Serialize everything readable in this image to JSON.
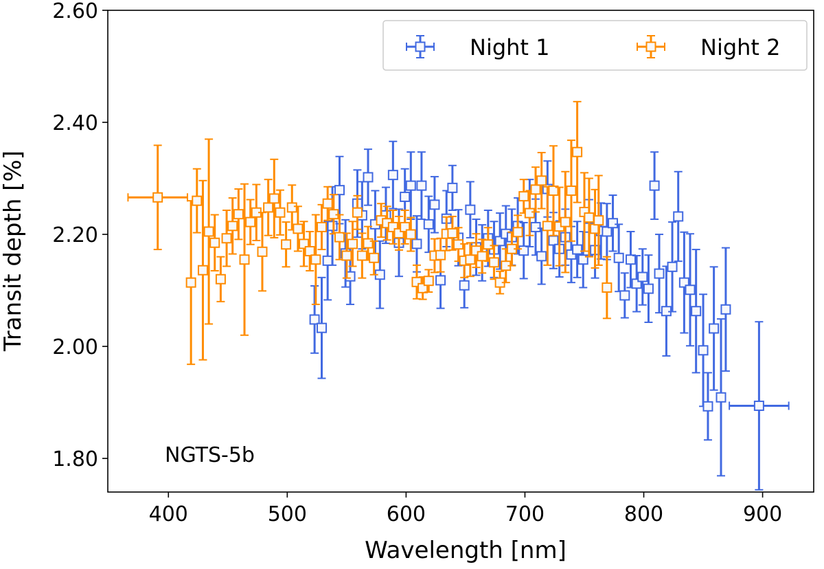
{
  "chart_data": {
    "type": "scatter",
    "title": "",
    "xlabel": "Wavelength [nm]",
    "ylabel": "Transit depth [%]",
    "xlim": [
      349,
      943
    ],
    "ylim": [
      1.74,
      2.6
    ],
    "xticks": [
      400,
      500,
      600,
      700,
      800,
      900
    ],
    "yticks": [
      "1.80",
      "2.00",
      "2.20",
      "2.40",
      "2.60"
    ],
    "grid": false,
    "legend_position": "top-right",
    "annotation": "NGTS-5b",
    "series": [
      {
        "name": "Night 1",
        "color": "#4169E1",
        "x": [
          523,
          529,
          534,
          538,
          544,
          549,
          553,
          559,
          563,
          568,
          574,
          578,
          583,
          589,
          594,
          599,
          604,
          609,
          613,
          619,
          624,
          629,
          634,
          639,
          644,
          649,
          654,
          659,
          664,
          669,
          674,
          679,
          684,
          689,
          694,
          699,
          704,
          709,
          714,
          719,
          724,
          729,
          734,
          739,
          744,
          749,
          754,
          759,
          764,
          769,
          774,
          779,
          784,
          789,
          794,
          799,
          804,
          809,
          813,
          819,
          824,
          829,
          834,
          839,
          844,
          850,
          854,
          859,
          865,
          869,
          897
        ],
        "y": [
          2.048,
          2.033,
          2.153,
          2.215,
          2.279,
          2.166,
          2.125,
          2.255,
          2.234,
          2.302,
          2.218,
          2.128,
          2.234,
          2.306,
          2.185,
          2.267,
          2.287,
          2.183,
          2.287,
          2.218,
          2.253,
          2.118,
          2.228,
          2.283,
          2.194,
          2.109,
          2.244,
          2.177,
          2.167,
          2.193,
          2.173,
          2.188,
          2.201,
          2.195,
          2.215,
          2.171,
          2.238,
          2.213,
          2.161,
          2.281,
          2.189,
          2.174,
          2.195,
          2.164,
          2.173,
          2.155,
          2.212,
          2.172,
          2.206,
          2.205,
          2.22,
          2.158,
          2.091,
          2.155,
          2.112,
          2.124,
          2.103,
          2.287,
          2.13,
          2.063,
          2.142,
          2.232,
          2.114,
          2.101,
          2.063,
          1.993,
          1.893,
          2.032,
          1.909,
          2.066,
          1.894
        ],
        "yerr": [
          0.06,
          0.09,
          0.07,
          0.07,
          0.06,
          0.06,
          0.05,
          0.06,
          0.06,
          0.05,
          0.06,
          0.06,
          0.05,
          0.06,
          0.06,
          0.05,
          0.06,
          0.05,
          0.06,
          0.05,
          0.05,
          0.05,
          0.05,
          0.04,
          0.05,
          0.04,
          0.05,
          0.05,
          0.05,
          0.05,
          0.05,
          0.05,
          0.05,
          0.05,
          0.05,
          0.05,
          0.06,
          0.05,
          0.05,
          0.05,
          0.05,
          0.05,
          0.05,
          0.05,
          0.05,
          0.05,
          0.05,
          0.05,
          0.05,
          0.05,
          0.05,
          0.06,
          0.04,
          0.05,
          0.05,
          0.05,
          0.06,
          0.06,
          0.07,
          0.08,
          0.08,
          0.08,
          0.09,
          0.1,
          0.11,
          0.1,
          0.06,
          0.11,
          0.14,
          0.11,
          0.15
        ],
        "xerr": [
          0,
          0,
          0,
          0,
          0,
          0,
          0,
          0,
          0,
          0,
          0,
          0,
          0,
          0,
          0,
          0,
          0,
          0,
          0,
          0,
          0,
          0,
          0,
          0,
          0,
          0,
          0,
          0,
          0,
          0,
          0,
          0,
          0,
          0,
          0,
          0,
          0,
          0,
          0,
          0,
          0,
          0,
          0,
          0,
          0,
          0,
          0,
          0,
          0,
          0,
          0,
          0,
          0,
          0,
          0,
          0,
          0,
          0,
          0,
          0,
          0,
          0,
          0,
          0,
          0,
          0,
          0,
          0,
          0,
          0,
          25
        ]
      },
      {
        "name": "Night 2",
        "color": "#FF8C00",
        "x": [
          391,
          419,
          424,
          429,
          434,
          439,
          444,
          449,
          454,
          459,
          464,
          469,
          474,
          479,
          484,
          489,
          494,
          499,
          504,
          509,
          514,
          519,
          524,
          529,
          534,
          539,
          544,
          550,
          555,
          559,
          563,
          568,
          573,
          579,
          584,
          589,
          594,
          599,
          604,
          609,
          614,
          619,
          624,
          629,
          634,
          639,
          644,
          649,
          654,
          659,
          664,
          669,
          674,
          679,
          684,
          689,
          694,
          699,
          704,
          709,
          714,
          719,
          724,
          729,
          734,
          739,
          744,
          750,
          754,
          759,
          762,
          769
        ],
        "y": [
          2.266,
          2.114,
          2.26,
          2.136,
          2.205,
          2.185,
          2.12,
          2.193,
          2.215,
          2.236,
          2.155,
          2.222,
          2.239,
          2.169,
          2.248,
          2.264,
          2.239,
          2.182,
          2.248,
          2.21,
          2.183,
          2.17,
          2.155,
          2.213,
          2.255,
          2.236,
          2.195,
          2.162,
          2.183,
          2.239,
          2.162,
          2.184,
          2.158,
          2.225,
          2.22,
          2.213,
          2.202,
          2.213,
          2.2,
          2.115,
          2.104,
          2.117,
          2.162,
          2.163,
          2.201,
          2.202,
          2.182,
          2.153,
          2.155,
          2.171,
          2.161,
          2.182,
          2.15,
          2.114,
          2.144,
          2.174,
          2.204,
          2.268,
          2.238,
          2.28,
          2.296,
          2.215,
          2.278,
          2.214,
          2.222,
          2.278,
          2.347,
          2.24,
          2.23,
          2.21,
          2.225,
          2.105
        ],
        "yerr": [
          0.093,
          0.146,
          0.057,
          0.16,
          0.165,
          0.05,
          0.04,
          0.05,
          0.05,
          0.045,
          0.135,
          0.04,
          0.05,
          0.07,
          0.05,
          0.07,
          0.04,
          0.04,
          0.04,
          0.04,
          0.04,
          0.035,
          0.08,
          0.04,
          0.03,
          0.035,
          0.04,
          0.04,
          0.04,
          0.03,
          0.04,
          0.03,
          0.03,
          0.03,
          0.03,
          0.03,
          0.03,
          0.03,
          0.03,
          0.03,
          0.02,
          0.02,
          0.03,
          0.03,
          0.03,
          0.03,
          0.03,
          0.03,
          0.03,
          0.03,
          0.03,
          0.03,
          0.03,
          0.02,
          0.03,
          0.03,
          0.03,
          0.03,
          0.04,
          0.04,
          0.05,
          0.07,
          0.08,
          0.07,
          0.09,
          0.09,
          0.09,
          0.07,
          0.07,
          0.07,
          0.08,
          0.055
        ],
        "xerr": [
          25,
          0,
          0,
          0,
          0,
          0,
          0,
          0,
          0,
          0,
          0,
          0,
          0,
          0,
          0,
          0,
          0,
          0,
          0,
          0,
          0,
          0,
          0,
          0,
          0,
          0,
          0,
          0,
          0,
          0,
          0,
          0,
          0,
          0,
          0,
          0,
          0,
          0,
          0,
          0,
          0,
          0,
          0,
          0,
          0,
          0,
          0,
          0,
          0,
          0,
          0,
          0,
          0,
          0,
          0,
          0,
          0,
          0,
          0,
          0,
          0,
          0,
          0,
          0,
          0,
          0,
          0,
          0,
          0,
          0,
          0,
          0
        ]
      }
    ]
  }
}
